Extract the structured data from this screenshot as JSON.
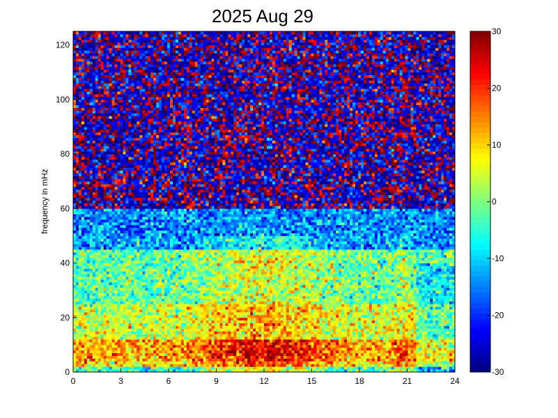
{
  "chart_data": {
    "type": "heatmap",
    "title": "2025 Aug 29",
    "xlabel": "",
    "ylabel": "frequency in mHz",
    "xlim": [
      0,
      24
    ],
    "ylim": [
      0,
      125
    ],
    "xticks": [
      0,
      3,
      6,
      9,
      12,
      15,
      18,
      21,
      24
    ],
    "yticks": [
      0,
      20,
      40,
      60,
      80,
      100,
      120
    ],
    "colorbar": {
      "range": [
        -30,
        30
      ],
      "ticks": [
        -30,
        -20,
        -10,
        0,
        10,
        20,
        30
      ],
      "colormap": "jet",
      "placement": "right"
    },
    "grid": false,
    "description_levels": {
      "low_band_0_10mHz": "high (10 to 30) with peaks around hours 12-17 and 20-21",
      "band_10_45mHz": "moderate (-10 to 10)",
      "band_45_60mHz": "low (-20 to -10)",
      "band_60_125mHz": "very low to saturated mix (-30 to 30 speckle)"
    }
  }
}
